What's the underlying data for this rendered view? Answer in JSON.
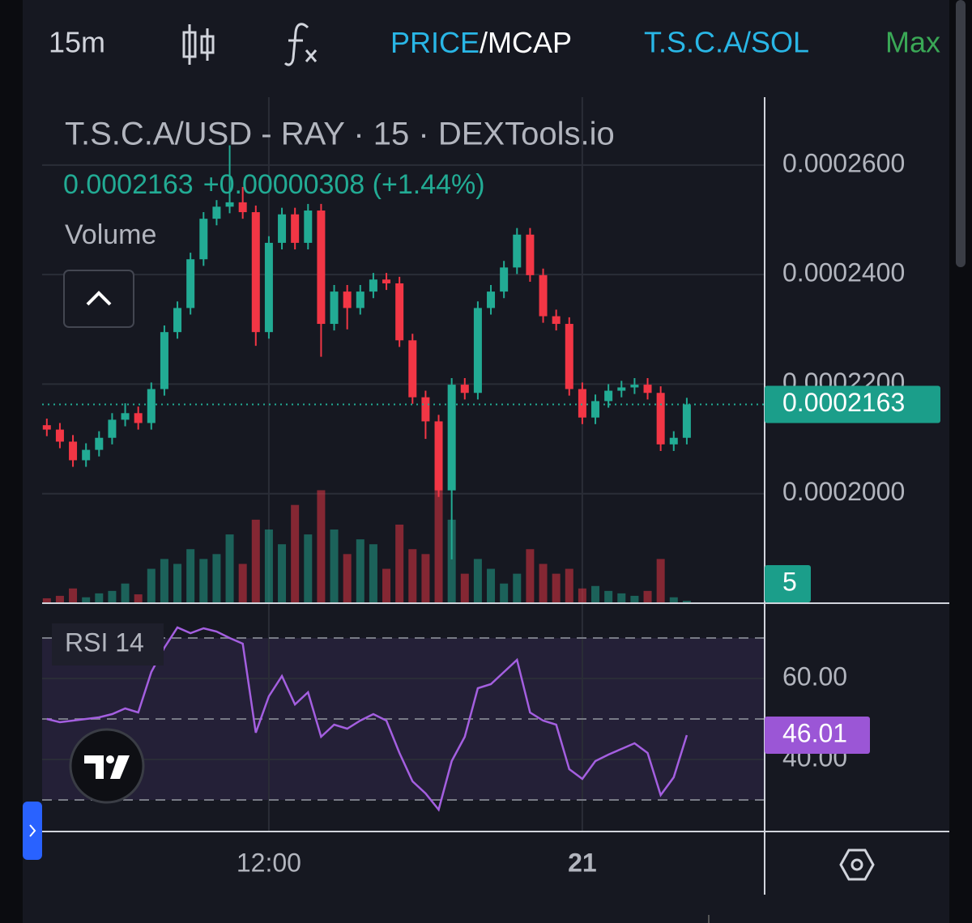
{
  "toolbar": {
    "interval": "15m",
    "price": "PRICE",
    "mcap": "/MCAP",
    "pair": "T.S.C.A/SOL",
    "range": "Max"
  },
  "chart_data": {
    "type": "candlestick",
    "title": "T.S.C.A/USD - RAY · 15 · DEXTools.io",
    "change": "+0.00000308 (+1.44%)",
    "volume_name": "Volume",
    "up_color": "#22ab94",
    "down_color": "#f23645",
    "x": [
      3.5,
      4,
      4.5,
      5,
      5.5,
      6,
      6.5,
      7,
      7.5,
      8,
      8.5,
      9,
      9.5,
      10,
      10.5,
      11,
      11.5,
      12,
      12.5,
      13,
      13.5,
      14,
      14.5,
      15,
      15.5,
      16,
      16.5,
      17,
      17.5,
      18,
      18.5,
      19,
      19.5,
      20,
      20.5,
      21,
      21.5,
      22,
      22.5,
      23,
      23.5,
      24,
      24.5,
      25,
      25.5,
      26,
      26.5,
      27,
      27.5,
      28
    ],
    "open": [
      0.0002125,
      0.0002117,
      0.0002095,
      0.0002061,
      0.000208,
      0.0002102,
      0.0002135,
      0.0002147,
      0.0002129,
      0.0002191,
      0.0002295,
      0.0002339,
      0.0002428,
      0.0002502,
      0.0002524,
      0.0002532,
      0.0002514,
      0.0002295,
      0.0002458,
      0.000251,
      0.0002458,
      0.0002517,
      0.000231,
      0.0002369,
      0.0002339,
      0.0002369,
      0.0002391,
      0.0002384,
      0.000228,
      0.0002176,
      0.0002132,
      0.0002006,
      0.0002199,
      0.0002184,
      0.0002339,
      0.0002369,
      0.0002413,
      0.0002473,
      0.0002399,
      0.0002324,
      0.000231,
      0.0002191,
      0.0002139,
      0.0002169,
      0.0002188,
      0.0002194,
      0.0002199,
      0.0002184,
      0.000209,
      0.0002102
    ],
    "high": [
      0.0002137,
      0.0002129,
      0.0002107,
      0.0002092,
      0.0002114,
      0.0002147,
      0.0002165,
      0.0002159,
      0.0002203,
      0.0002307,
      0.0002351,
      0.000244,
      0.0002514,
      0.0002536,
      0.0002636,
      0.000256,
      0.0002526,
      0.000247,
      0.0002522,
      0.0002522,
      0.0002529,
      0.0002529,
      0.0002381,
      0.0002381,
      0.0002381,
      0.0002403,
      0.0002403,
      0.0002396,
      0.0002292,
      0.0002188,
      0.0002144,
      0.0002211,
      0.0002211,
      0.0002351,
      0.0002381,
      0.0002425,
      0.0002485,
      0.0002485,
      0.0002411,
      0.0002336,
      0.0002322,
      0.0002203,
      0.0002181,
      0.00022,
      0.0002206,
      0.0002211,
      0.0002211,
      0.0002196,
      0.0002114,
      0.0002175
    ],
    "low": [
      0.0002105,
      0.0002083,
      0.0002049,
      0.0002049,
      0.0002068,
      0.000209,
      0.0002123,
      0.0002117,
      0.0002117,
      0.0002179,
      0.0002283,
      0.0002327,
      0.0002416,
      0.000249,
      0.0002512,
      0.0002502,
      0.000227,
      0.0002283,
      0.0002446,
      0.0002446,
      0.0002446,
      0.000225,
      0.0002298,
      0.00023,
      0.0002327,
      0.0002357,
      0.0002372,
      0.0002268,
      0.0002164,
      0.00021,
      0.0001994,
      0.000188,
      0.0002172,
      0.0002172,
      0.0002327,
      0.0002357,
      0.0002401,
      0.0002387,
      0.0002312,
      0.0002298,
      0.0002179,
      0.0002127,
      0.0002127,
      0.0002157,
      0.0002176,
      0.0002182,
      0.0002172,
      0.0002078,
      0.0002078,
      0.000209
    ],
    "close": [
      0.0002117,
      0.0002095,
      0.0002061,
      0.000208,
      0.0002102,
      0.0002135,
      0.0002147,
      0.0002129,
      0.0002191,
      0.0002295,
      0.0002339,
      0.0002428,
      0.0002502,
      0.0002524,
      0.0002532,
      0.0002514,
      0.0002295,
      0.0002458,
      0.000251,
      0.0002458,
      0.0002517,
      0.000231,
      0.0002369,
      0.0002339,
      0.0002369,
      0.0002391,
      0.0002384,
      0.000228,
      0.0002176,
      0.0002132,
      0.0002006,
      0.0002199,
      0.0002184,
      0.0002339,
      0.0002369,
      0.0002413,
      0.0002473,
      0.0002399,
      0.0002324,
      0.000231,
      0.0002191,
      0.0002139,
      0.0002169,
      0.0002188,
      0.0002194,
      0.0002199,
      0.0002184,
      0.000209,
      0.0002102,
      0.0002163
    ],
    "volume": [
      10,
      15,
      30,
      12,
      20,
      25,
      40,
      18,
      70,
      90,
      80,
      110,
      90,
      100,
      140,
      80,
      170,
      150,
      120,
      200,
      140,
      230,
      150,
      100,
      130,
      120,
      70,
      160,
      110,
      100,
      230,
      170,
      60,
      90,
      70,
      40,
      60,
      110,
      80,
      60,
      70,
      30,
      35,
      25,
      20,
      15,
      25,
      90,
      12,
      5
    ],
    "volume_lim": [
      0,
      300
    ],
    "xlim": [
      3.32,
      30.98
    ],
    "xticks": [
      {
        "value": 12,
        "label": "12:00"
      },
      {
        "value": 24,
        "label": "21"
      }
    ],
    "ylim": [
      0.00018,
      0.0002724
    ],
    "yticks": [
      {
        "value": 0.0002,
        "label": "0.0002000"
      },
      {
        "value": 0.00022,
        "label": "0.0002200"
      },
      {
        "value": 0.00024,
        "label": "0.0002400"
      },
      {
        "value": 0.00026,
        "label": "0.0002600"
      }
    ],
    "grid": true,
    "rsi": {
      "name": "RSI 14",
      "color": "#a45fe0",
      "values": [
        50,
        49.2,
        49.6,
        50,
        50.4,
        51.2,
        52.6,
        51.6,
        61.6,
        67.6,
        72.6,
        71.2,
        72.4,
        71.6,
        70,
        68.6,
        46.6,
        55.6,
        60.6,
        53.6,
        56.6,
        45.6,
        48.6,
        47.6,
        49.6,
        51.2,
        49.6,
        41.6,
        34.6,
        31.6,
        27.6,
        39.6,
        45.6,
        57.6,
        58.6,
        61.6,
        64.6,
        51.6,
        49.6,
        48.6,
        37.6,
        35.2,
        39.6,
        41.2,
        42.6,
        44,
        41.6,
        31.2,
        35.6,
        46.01
      ],
      "ylim": [
        22.2,
        78.6
      ],
      "yticks": [
        {
          "value": 60,
          "label": "60.00"
        },
        {
          "value": 40,
          "label": "40.00"
        }
      ],
      "levels": [
        70,
        50,
        30
      ]
    }
  }
}
